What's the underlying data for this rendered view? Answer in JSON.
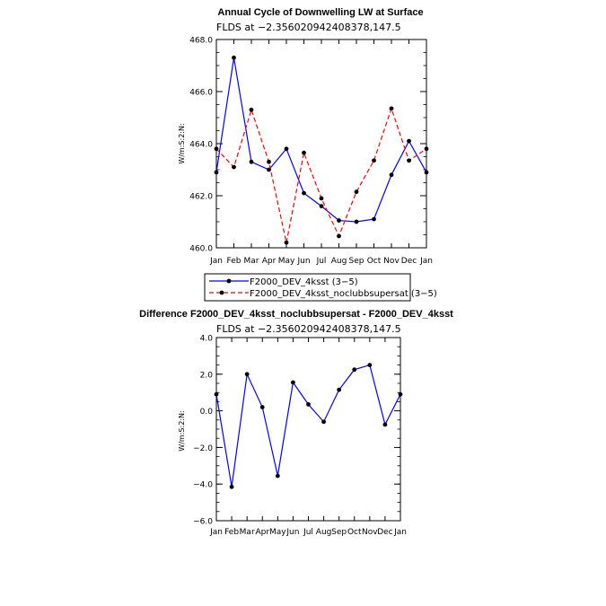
{
  "chart_data": [
    {
      "type": "line",
      "title": "Annual Cycle of Downwelling LW at Surface",
      "subtitle": "FLDS at −2.356020942408378,147.5",
      "ylabel": "W/m:S:2:N:",
      "categories": [
        "Jan",
        "Feb",
        "Mar",
        "Apr",
        "May",
        "Jun",
        "Jul",
        "Aug",
        "Sep",
        "Oct",
        "Nov",
        "Dec",
        "Jan"
      ],
      "ylim": [
        460.0,
        468.0
      ],
      "yticks": [
        "460.0",
        "462.0",
        "464.0",
        "466.0",
        "468.0"
      ],
      "series": [
        {
          "name": "F2000_DEV_4ksst (3−5)",
          "color": "#0000ff",
          "dash": "solid",
          "values": [
            462.9,
            467.3,
            463.3,
            463.0,
            463.8,
            462.1,
            461.6,
            461.05,
            461.0,
            461.1,
            462.8,
            464.1,
            462.9
          ]
        },
        {
          "name": "F2000_DEV_4ksst_noclubbsupersat (3−5)",
          "color": "#ff0000",
          "dash": "dashed",
          "values": [
            463.8,
            463.1,
            465.3,
            463.3,
            460.2,
            463.65,
            461.9,
            460.45,
            462.15,
            463.35,
            465.35,
            463.35,
            463.8
          ]
        }
      ]
    },
    {
      "type": "line",
      "title": "Difference F2000_DEV_4ksst_noclubbsupersat - F2000_DEV_4ksst",
      "subtitle": "FLDS at −2.356020942408378,147.5",
      "ylabel": "W/m:S:2:N:",
      "categories": [
        "Jan",
        "Feb",
        "Mar",
        "Apr",
        "May",
        "Jun",
        "Jul",
        "Aug",
        "Sep",
        "Oct",
        "Nov",
        "Dec",
        "Jan"
      ],
      "ylim": [
        -6.0,
        4.0
      ],
      "yticks": [
        "−6.0",
        "−4.0",
        "−2.0",
        "0.0",
        "2.0",
        "4.0"
      ],
      "series": [
        {
          "color": "#0000ff",
          "values": [
            0.9,
            -4.15,
            2.0,
            0.2,
            -3.55,
            1.55,
            0.35,
            -0.6,
            1.15,
            2.25,
            2.5,
            -0.75,
            0.9
          ]
        }
      ]
    }
  ]
}
